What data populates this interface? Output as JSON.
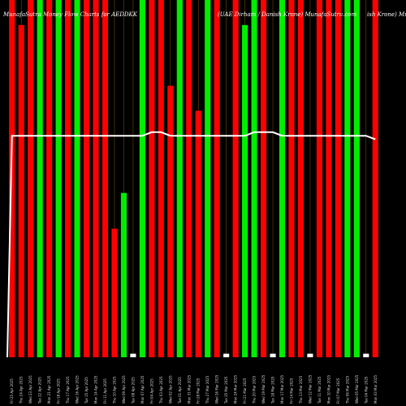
{
  "chart_data": {
    "type": "bar",
    "title_left": "MunafaSutra Money Flow Charts for AEDDKK",
    "title_right": "(UAE Dirham / Danish Krone) MunafaSutra.com",
    "title_right_tail": "ish Krone) Munafa",
    "colors": {
      "up": "#00ee00",
      "down": "#ff0000",
      "line": "#ffffff",
      "grid": "#6b4a00",
      "background": "#000000"
    },
    "categories": [
      "Fri 25 Apr 2025",
      "Thu 24 Apr 2025",
      "Wed 23 Apr 2025",
      "Tue 22 Apr 2025",
      "Mon 21 Apr 2025",
      "Fri 18 Apr 2025",
      "Thu 17 Apr 2025",
      "Wed 16 Apr 2025",
      "Tue 15 Apr 2025",
      "Mon 14 Apr 2025",
      "Fri 11 Apr 2025",
      "Thu 10 Apr 2025",
      "Wed 09 Apr 2025",
      "Tue 08 Apr 2025",
      "Mon 07 Apr 2025",
      "Fri 04 Apr 2025",
      "Thu 03 Apr 2025",
      "Wed 02 Apr 2025",
      "Tue 01 Apr 2025",
      "Mon 31 Mar 2025",
      "Fri 28 Mar 2025",
      "Thu 27 Mar 2025",
      "Wed 26 Mar 2025",
      "Tue 25 Mar 2025",
      "Mon 24 Mar 2025",
      "Fri 21 Mar 2025",
      "Thu 20 Mar 2025",
      "Wed 19 Mar 2025",
      "Tue 18 Mar 2025",
      "Mon 17 Mar 2025",
      "Fri 14 Mar 2025",
      "Thu 13 Mar 2025",
      "Wed 12 Mar 2025",
      "Tue 11 Mar 2025",
      "Mon 10 Mar 2025",
      "Fri 07 Mar 2025",
      "Thu 06 Mar 2025",
      "Wed 05 Mar 2025",
      "Tue 04 Mar 2025",
      "Mon 03 Mar 2025"
    ],
    "values": [
      100,
      93,
      100,
      100,
      100,
      100,
      100,
      100,
      100,
      100,
      100,
      36,
      46,
      1,
      100,
      100,
      100,
      76,
      100,
      100,
      69,
      100,
      100,
      1,
      100,
      93,
      100,
      100,
      1,
      100,
      100,
      100,
      1,
      100,
      100,
      100,
      100,
      100,
      1,
      100
    ],
    "directions": [
      "down",
      "down",
      "down",
      "up",
      "down",
      "up",
      "down",
      "up",
      "down",
      "down",
      "down",
      "down",
      "up",
      "up",
      "up",
      "down",
      "down",
      "down",
      "up",
      "down",
      "down",
      "up",
      "down",
      "up",
      "down",
      "up",
      "up",
      "down",
      "up",
      "up",
      "down",
      "down",
      "down",
      "down",
      "down",
      "down",
      "up",
      "up",
      "up",
      "down"
    ],
    "ylim": [
      0,
      100
    ],
    "price_line": [
      62,
      62,
      62,
      62,
      62,
      62,
      62,
      62,
      62,
      62,
      62,
      62,
      62,
      62,
      62,
      63,
      63,
      62,
      62,
      62,
      62,
      62,
      62,
      62,
      62,
      62,
      63,
      63,
      63,
      62,
      62,
      62,
      62,
      62,
      62,
      62,
      62,
      62,
      62,
      61
    ]
  }
}
